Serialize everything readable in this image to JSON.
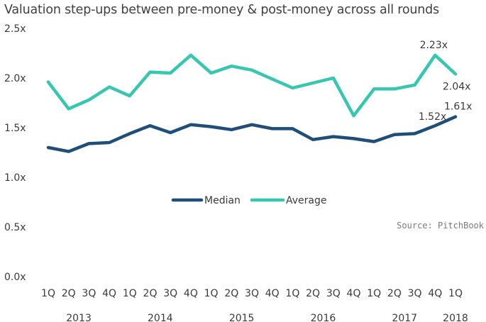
{
  "chart_data": {
    "type": "line",
    "title": "Valuation step-ups between pre-money & post-money across all rounds",
    "source": "Source: PitchBook",
    "ylim": [
      0,
      2.5
    ],
    "yticks": [
      "0.0x",
      "0.5x",
      "1.0x",
      "1.5x",
      "2.0x",
      "2.5x"
    ],
    "ytick_values": [
      0,
      0.5,
      1.0,
      1.5,
      2.0,
      2.5
    ],
    "categories": [
      "1Q",
      "2Q",
      "3Q",
      "4Q",
      "1Q",
      "2Q",
      "3Q",
      "4Q",
      "1Q",
      "2Q",
      "3Q",
      "4Q",
      "1Q",
      "2Q",
      "3Q",
      "4Q",
      "1Q",
      "2Q",
      "3Q",
      "4Q",
      "1Q"
    ],
    "years": [
      {
        "label": "2013",
        "start": 0,
        "end": 3
      },
      {
        "label": "2014",
        "start": 4,
        "end": 7
      },
      {
        "label": "2015",
        "start": 8,
        "end": 11
      },
      {
        "label": "2016",
        "start": 12,
        "end": 15
      },
      {
        "label": "2017",
        "start": 16,
        "end": 19
      },
      {
        "label": "2018",
        "start": 20,
        "end": 20
      }
    ],
    "legend_position": "center",
    "series": [
      {
        "name": "Median",
        "color": "#1f4e79",
        "values": [
          1.3,
          1.26,
          1.34,
          1.35,
          1.44,
          1.52,
          1.45,
          1.53,
          1.51,
          1.48,
          1.53,
          1.49,
          1.49,
          1.38,
          1.41,
          1.39,
          1.36,
          1.43,
          1.44,
          1.52,
          1.61
        ],
        "labels": [
          {
            "index": 19,
            "text": "1.52x"
          },
          {
            "index": 20,
            "text": "1.61x"
          }
        ]
      },
      {
        "name": "Average",
        "color": "#35c7b0",
        "values": [
          1.96,
          1.69,
          1.78,
          1.91,
          1.82,
          2.06,
          2.05,
          2.23,
          2.05,
          2.12,
          2.08,
          1.99,
          1.9,
          1.95,
          2.0,
          1.62,
          1.89,
          1.89,
          1.93,
          2.23,
          2.04
        ],
        "labels": [
          {
            "index": 19,
            "text": "2.23x"
          },
          {
            "index": 20,
            "text": "2.04x"
          }
        ]
      }
    ]
  }
}
